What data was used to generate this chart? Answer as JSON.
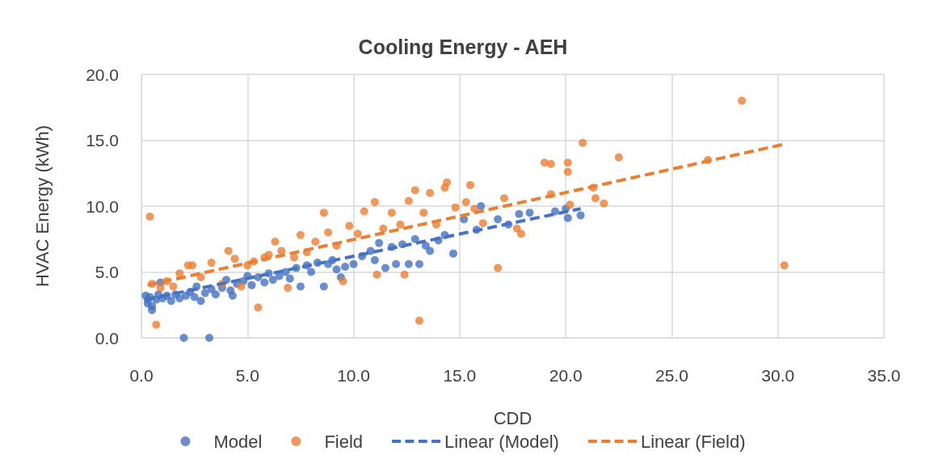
{
  "chart_data": {
    "type": "scatter",
    "title": "Cooling Energy - AEH",
    "xlabel": "CDD",
    "ylabel": "HVAC Energy (kWh)",
    "xlim": [
      0,
      35
    ],
    "xticks": [
      {
        "value": 0,
        "label": "0.0"
      },
      {
        "value": 5,
        "label": "5.0"
      },
      {
        "value": 10,
        "label": "10.0"
      },
      {
        "value": 15,
        "label": "15.0"
      },
      {
        "value": 20,
        "label": "20.0"
      },
      {
        "value": 25,
        "label": "25.0"
      },
      {
        "value": 30,
        "label": "30.0"
      },
      {
        "value": 35,
        "label": "35.0"
      }
    ],
    "ylim": [
      0,
      20
    ],
    "yticks": [
      {
        "value": 0,
        "label": "0.0"
      },
      {
        "value": 5,
        "label": "5.0"
      },
      {
        "value": 10,
        "label": "10.0"
      },
      {
        "value": 15,
        "label": "15.0"
      },
      {
        "value": 20,
        "label": "20.0"
      }
    ],
    "grid": true,
    "legend": "bottom",
    "series": [
      {
        "name": "Model",
        "marker": "circle",
        "color": "#4472c4",
        "x": [
          0.2,
          0.3,
          0.3,
          0.4,
          0.5,
          0.5,
          0.7,
          0.8,
          0.9,
          1.0,
          1.2,
          1.4,
          1.6,
          1.8,
          2.0,
          2.1,
          2.3,
          2.5,
          2.6,
          2.8,
          3.0,
          3.2,
          3.3,
          3.5,
          3.8,
          4.0,
          4.2,
          4.3,
          4.5,
          4.8,
          5.0,
          5.2,
          5.5,
          5.8,
          6.0,
          6.2,
          6.5,
          6.8,
          7.0,
          7.3,
          7.5,
          7.8,
          8.0,
          8.3,
          8.6,
          8.8,
          9.0,
          9.2,
          9.4,
          9.6,
          10.0,
          10.4,
          10.8,
          11.0,
          11.2,
          11.5,
          11.8,
          12.0,
          12.3,
          12.6,
          12.9,
          13.1,
          13.4,
          13.6,
          14.0,
          14.3,
          14.7,
          15.2,
          15.8,
          16.0,
          16.8,
          17.3,
          17.8,
          18.3,
          19.5,
          20.0,
          20.1,
          20.7
        ],
        "values": [
          3.2,
          2.9,
          2.6,
          3.1,
          2.4,
          2.1,
          2.9,
          3.3,
          4.2,
          3.0,
          3.2,
          2.8,
          3.3,
          3.0,
          0.0,
          3.2,
          3.5,
          3.1,
          3.9,
          2.8,
          3.4,
          0.0,
          3.7,
          3.3,
          3.8,
          4.4,
          3.6,
          3.2,
          4.1,
          4.3,
          4.7,
          4.0,
          4.6,
          4.2,
          4.9,
          4.4,
          4.7,
          5.0,
          4.5,
          5.3,
          3.9,
          5.5,
          5.0,
          5.7,
          3.9,
          5.6,
          5.9,
          5.2,
          4.6,
          5.4,
          5.6,
          6.2,
          6.6,
          5.9,
          7.2,
          5.3,
          6.9,
          5.6,
          7.1,
          5.6,
          7.5,
          5.6,
          7.0,
          6.6,
          7.4,
          7.8,
          6.4,
          9.0,
          8.2,
          10.0,
          9.0,
          8.6,
          9.4,
          9.5,
          9.6,
          9.8,
          9.1,
          9.3
        ]
      },
      {
        "name": "Field",
        "marker": "circle",
        "color": "#ed7d31",
        "x": [
          0.4,
          0.5,
          0.7,
          0.9,
          1.2,
          1.5,
          1.8,
          2.2,
          2.4,
          2.8,
          3.3,
          3.8,
          4.1,
          4.4,
          4.7,
          5.0,
          5.3,
          5.5,
          5.8,
          6.0,
          6.3,
          6.6,
          6.9,
          7.2,
          7.5,
          7.8,
          8.2,
          8.6,
          8.8,
          9.2,
          9.5,
          9.8,
          10.2,
          10.5,
          11.0,
          11.1,
          11.4,
          11.8,
          12.2,
          12.4,
          12.6,
          12.9,
          13.1,
          13.3,
          13.6,
          13.9,
          14.3,
          14.4,
          14.8,
          15.3,
          15.5,
          15.7,
          16.1,
          16.8,
          17.1,
          17.7,
          17.9,
          19.0,
          19.3,
          19.3,
          20.1,
          20.1,
          20.2,
          20.8,
          21.3,
          21.4,
          21.8,
          22.5,
          26.7,
          28.3,
          30.3
        ],
        "values": [
          9.2,
          4.1,
          1.0,
          3.8,
          4.3,
          3.9,
          4.9,
          5.5,
          5.5,
          4.6,
          5.7,
          4.1,
          6.6,
          6.0,
          3.9,
          5.5,
          5.8,
          2.3,
          6.1,
          6.3,
          7.3,
          6.6,
          3.8,
          6.1,
          7.8,
          6.5,
          7.3,
          9.5,
          8.0,
          7.0,
          4.3,
          8.5,
          7.9,
          9.6,
          10.3,
          4.8,
          8.3,
          9.5,
          8.6,
          4.8,
          10.4,
          11.2,
          1.3,
          9.5,
          11.0,
          8.6,
          11.4,
          11.8,
          9.9,
          10.3,
          11.6,
          9.8,
          8.7,
          5.3,
          10.6,
          8.3,
          7.9,
          13.3,
          13.2,
          10.9,
          13.3,
          12.6,
          10.1,
          14.8,
          11.4,
          10.6,
          10.2,
          13.7,
          13.5,
          18.0,
          5.5
        ]
      },
      {
        "name": "Linear (Model)",
        "type": "line",
        "marker": "none",
        "line_style": "dashed",
        "color": "#4472c4",
        "x": [
          0.2,
          20.7
        ],
        "values": [
          2.9,
          9.8
        ]
      },
      {
        "name": "Linear (Field)",
        "type": "line",
        "marker": "none",
        "line_style": "dashed",
        "color": "#ed7d31",
        "x": [
          0.3,
          30.3
        ],
        "values": [
          4.0,
          14.7
        ]
      }
    ]
  }
}
